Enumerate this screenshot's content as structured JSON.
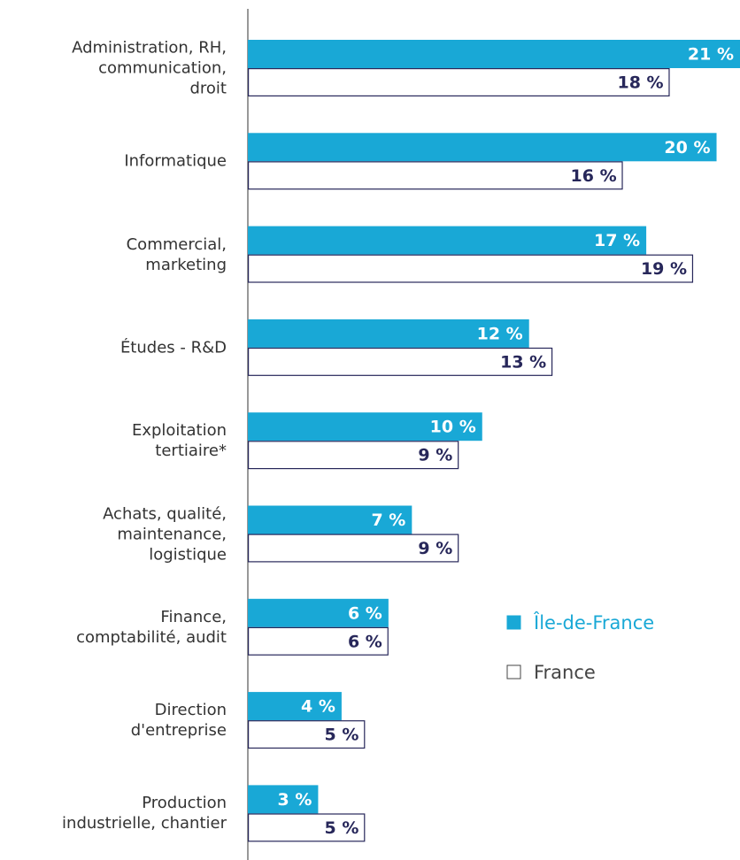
{
  "chart_data": {
    "type": "bar",
    "orientation": "horizontal",
    "categories": [
      "Administration, RH,\ncommunication,\ndroit",
      "Informatique",
      "Commercial,\nmarketing",
      "Études - R&D",
      "Exploitation\ntertiaire*",
      "Achats, qualité,\nmaintenance,\nlogistique",
      "Finance,\ncomptabilité, audit",
      "Direction\nd'entreprise",
      "Production\nindustrielle, chantier"
    ],
    "series": [
      {
        "name": "Île-de-France",
        "color": "#19a8d6",
        "values": [
          21,
          20,
          17,
          12,
          10,
          7,
          6,
          4,
          3
        ],
        "value_labels": [
          "21 %",
          "20 %",
          "17 %",
          "12 %",
          "10 %",
          "7 %",
          "6 %",
          "4 %",
          "3 %"
        ]
      },
      {
        "name": "France",
        "color": "#ffffff",
        "values": [
          18,
          16,
          19,
          13,
          9,
          9,
          6,
          5,
          5
        ],
        "value_labels": [
          "18 %",
          "16 %",
          "19 %",
          "13 %",
          "9 %",
          "9 %",
          "6 %",
          "5 %",
          "5 %"
        ]
      }
    ],
    "xlim": [
      0,
      21
    ],
    "legend": "right"
  }
}
